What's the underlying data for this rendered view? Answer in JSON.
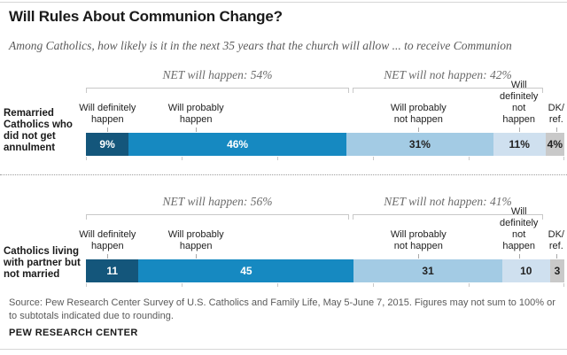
{
  "header": {
    "title": "Will Rules About Communion Change?",
    "subtitle": "Among Catholics, how likely is it in the next 35 years that the church will allow ... to receive Communion"
  },
  "chart_data": {
    "type": "bar",
    "stacked": true,
    "orientation": "horizontal",
    "title": "Will Rules About Communion Change?",
    "subtitle": "Among Catholics, how likely is it in the next 35 years that the church will allow ... to receive Communion",
    "segment_labels": [
      "Will definitely happen",
      "Will probably happen",
      "Will probably not happen",
      "Will definitely not happen",
      "DK/ref."
    ],
    "segment_label_lines": [
      [
        "Will definitely",
        "happen"
      ],
      [
        "Will probably",
        "happen"
      ],
      [
        "Will probably",
        "not happen"
      ],
      [
        "Will definitely",
        "not happen"
      ],
      [
        "DK/",
        "ref."
      ]
    ],
    "colors": [
      "#14567B",
      "#1689C1",
      "#A3CBE4",
      "#CFE0EF",
      "#C9C9C9"
    ],
    "value_text_colors": [
      "#ffffff",
      "#ffffff",
      "#222222",
      "#222222",
      "#222222"
    ],
    "rows": [
      {
        "category": "Remarried Catholics who did not get annulment",
        "net_will_happen": "NET will happen: 54%",
        "net_will_not_happen": "NET will not happen: 42%",
        "values": [
          9,
          46,
          31,
          11,
          4
        ],
        "value_labels": [
          "9%",
          "46%",
          "31%",
          "11%",
          "4%"
        ]
      },
      {
        "category": "Catholics living with partner but not married",
        "net_will_happen": "NET will happen: 56%",
        "net_will_not_happen": "NET will not happen: 41%",
        "values": [
          11,
          45,
          31,
          10,
          3
        ],
        "value_labels": [
          "11",
          "45",
          "31",
          "10",
          "3"
        ]
      }
    ],
    "legend_position": "above-bars",
    "grid": false
  },
  "source": "Source: Pew Research Center Survey of U.S. Catholics and Family Life, May 5-June 7, 2015. Figures may not sum to 100% or to subtotals indicated due to rounding.",
  "branding": "PEW RESEARCH CENTER"
}
